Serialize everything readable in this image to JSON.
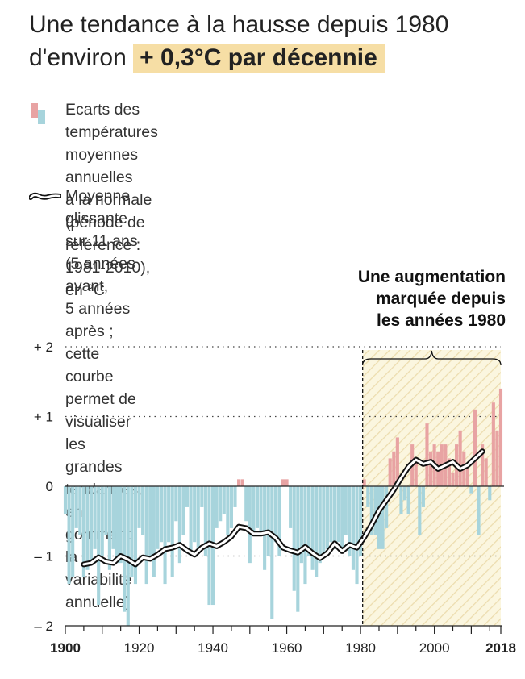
{
  "title": {
    "line1": "Une tendance à la hausse depuis 1980",
    "line2_prefix": "d'environ",
    "line2_highlight": "+ 0,3°C par décennie"
  },
  "legend": {
    "bars_label": [
      "Ecarts des températures moyennes annuelles",
      "à la normale (période de référence : 1981-2010),",
      "en °C"
    ],
    "line_label": [
      "Moyenne glissante sur 11 ans (5 années avant,",
      "5 années après ; cette courbe permet de visualiser",
      "les grandes tendances, en gommant la variabilité",
      "annuelle)"
    ]
  },
  "annotation": [
    "Une augmentation",
    "marquée depuis",
    "les années 1980"
  ],
  "colors": {
    "positive": "#e8a3a3",
    "negative": "#a7d4dc",
    "highlight": "#f6dea5",
    "hatch_bg": "#fbf6df",
    "hatch_line": "#ecdcae"
  },
  "chart_data": {
    "type": "bar",
    "xlim": [
      1900,
      2018
    ],
    "ylim": [
      -2,
      2
    ],
    "yticks": [
      {
        "value": 2,
        "label": "+ 2"
      },
      {
        "value": 1,
        "label": "+ 1"
      },
      {
        "value": 0,
        "label": "0"
      },
      {
        "value": -1,
        "label": "– 1"
      },
      {
        "value": -2,
        "label": "– 2"
      }
    ],
    "xticks": [
      {
        "value": 1900,
        "label": "1900",
        "bold": true
      },
      {
        "value": 1920,
        "label": "1920",
        "bold": false
      },
      {
        "value": 1940,
        "label": "1940",
        "bold": false
      },
      {
        "value": 1960,
        "label": "1960",
        "bold": false
      },
      {
        "value": 1980,
        "label": "1980",
        "bold": false
      },
      {
        "value": 2000,
        "label": "2000",
        "bold": false
      },
      {
        "value": 2018,
        "label": "2018",
        "bold": true
      }
    ],
    "highlight_start": 1981,
    "years": [
      1900,
      1901,
      1902,
      1903,
      1904,
      1905,
      1906,
      1907,
      1908,
      1909,
      1910,
      1911,
      1912,
      1913,
      1914,
      1915,
      1916,
      1917,
      1918,
      1919,
      1920,
      1921,
      1922,
      1923,
      1924,
      1925,
      1926,
      1927,
      1928,
      1929,
      1930,
      1931,
      1932,
      1933,
      1934,
      1935,
      1936,
      1937,
      1938,
      1939,
      1940,
      1941,
      1942,
      1943,
      1944,
      1945,
      1946,
      1947,
      1948,
      1949,
      1950,
      1951,
      1952,
      1953,
      1954,
      1955,
      1956,
      1957,
      1958,
      1959,
      1960,
      1961,
      1962,
      1963,
      1964,
      1965,
      1966,
      1967,
      1968,
      1969,
      1970,
      1971,
      1972,
      1973,
      1974,
      1975,
      1976,
      1977,
      1978,
      1979,
      1980,
      1981,
      1982,
      1983,
      1984,
      1985,
      1986,
      1987,
      1988,
      1989,
      1990,
      1991,
      1992,
      1993,
      1994,
      1995,
      1996,
      1997,
      1998,
      1999,
      2000,
      2001,
      2002,
      2003,
      2004,
      2005,
      2006,
      2007,
      2008,
      2009,
      2010,
      2011,
      2012,
      2013,
      2014,
      2015,
      2016,
      2017,
      2018
    ],
    "series": [
      {
        "name": "Ecarts des températures moyennes annuelles",
        "values": [
          -0.4,
          -1.4,
          -1.3,
          -0.6,
          -0.7,
          -1.3,
          -1.2,
          -1.1,
          -0.9,
          -1.7,
          -1.0,
          -0.7,
          -1.2,
          -0.9,
          -1.1,
          -1.1,
          -1.8,
          -2.0,
          -1.3,
          -1.4,
          -0.6,
          -0.7,
          -1.4,
          -1.0,
          -1.3,
          -0.9,
          -0.8,
          -1.4,
          -0.8,
          -1.3,
          -0.5,
          -1.1,
          -0.7,
          -0.3,
          -1.0,
          -0.8,
          -0.9,
          -0.3,
          -1.0,
          -1.7,
          -1.7,
          -0.6,
          -0.5,
          -0.4,
          -0.7,
          -0.6,
          -0.3,
          0.1,
          0.1,
          -0.5,
          -1.1,
          -0.7,
          -0.6,
          -0.7,
          -1.2,
          -1.0,
          -1.9,
          -0.8,
          -1.0,
          0.1,
          0.1,
          -0.6,
          -1.5,
          -1.8,
          -1.1,
          -1.4,
          -1.0,
          -1.2,
          -1.3,
          -1.1,
          -1.0,
          -0.9,
          -0.8,
          -0.9,
          -0.8,
          -0.9,
          -0.7,
          -1.0,
          -1.2,
          -1.4,
          -1.0,
          0.1,
          -0.3,
          -0.7,
          -0.7,
          -0.9,
          -0.9,
          -0.6,
          0.4,
          0.5,
          0.7,
          -0.4,
          -0.2,
          -0.4,
          0.6,
          0.4,
          -0.7,
          -0.3,
          0.9,
          0.5,
          0.6,
          0.5,
          0.6,
          0.6,
          0.4,
          0.2,
          0.6,
          0.8,
          0.5,
          0.3,
          -0.1,
          1.1,
          -0.7,
          0.6,
          0.4,
          -0.2,
          1.2,
          0.8,
          1.4
        ]
      },
      {
        "name": "Moyenne glissante sur 11 ans",
        "x": [
          1905,
          1907,
          1909,
          1911,
          1913,
          1915,
          1917,
          1919,
          1921,
          1923,
          1925,
          1927,
          1929,
          1931,
          1933,
          1935,
          1937,
          1939,
          1941,
          1943,
          1945,
          1947,
          1949,
          1951,
          1953,
          1955,
          1957,
          1959,
          1961,
          1963,
          1965,
          1967,
          1969,
          1971,
          1973,
          1975,
          1977,
          1979,
          1981,
          1983,
          1985,
          1987,
          1989,
          1991,
          1993,
          1995,
          1997,
          1999,
          2001,
          2003,
          2005,
          2007,
          2009,
          2011,
          2013
        ],
        "values": [
          -1.12,
          -1.1,
          -1.02,
          -1.08,
          -1.1,
          -1.0,
          -1.05,
          -1.12,
          -1.02,
          -1.04,
          -0.98,
          -0.9,
          -0.88,
          -0.84,
          -0.92,
          -0.98,
          -0.88,
          -0.82,
          -0.86,
          -0.8,
          -0.72,
          -0.58,
          -0.6,
          -0.68,
          -0.68,
          -0.66,
          -0.74,
          -0.88,
          -0.92,
          -0.95,
          -0.87,
          -0.96,
          -1.03,
          -0.96,
          -0.82,
          -0.93,
          -0.84,
          -0.88,
          -0.73,
          -0.55,
          -0.35,
          -0.2,
          -0.05,
          0.12,
          0.28,
          0.38,
          0.32,
          0.35,
          0.25,
          0.3,
          0.35,
          0.25,
          0.3,
          0.4,
          0.5
        ]
      }
    ]
  }
}
